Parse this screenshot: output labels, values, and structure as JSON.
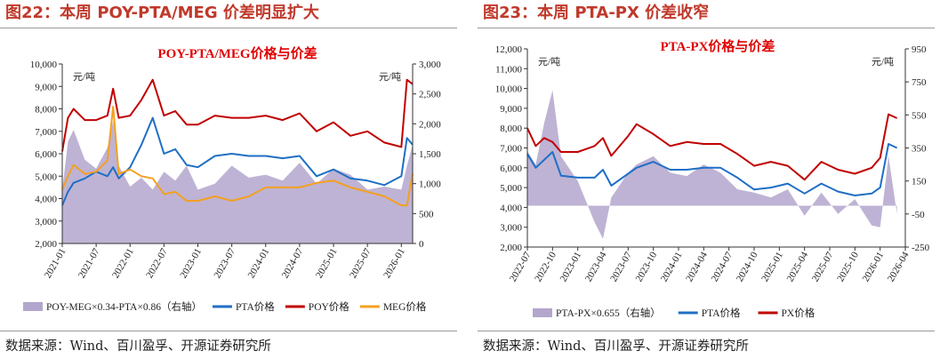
{
  "figures": [
    {
      "id": "fig22",
      "title": "图22：本周 POY-PTA/MEG 价差明显扩大",
      "source": "数据来源：Wind、百川盈孚、开源证券研究所",
      "chart_data": {
        "type": "line",
        "title": "POY-PTA/MEG价格与价差",
        "y_unit_left": "元/吨",
        "y_unit_right": "元/吨",
        "ylim_left": [
          2000,
          10000
        ],
        "ylim_right": [
          0,
          3000
        ],
        "yticks_left": [
          "2,000",
          "3,000",
          "4,000",
          "5,000",
          "6,000",
          "7,000",
          "8,000",
          "9,000",
          "10,000"
        ],
        "yticks_right": [
          "0",
          "500",
          "1,000",
          "1,500",
          "2,000",
          "2,500",
          "3,000"
        ],
        "x_ticks": [
          "2021-01",
          "2021-07",
          "2022-01",
          "2022-07",
          "2023-01",
          "2023-07",
          "2024-01",
          "2024-07",
          "2025-01",
          "2025-07",
          "2026-01"
        ],
        "x_range": [
          "2021-01",
          "2026-03"
        ],
        "grid": false,
        "legend_position": "bottom",
        "series": [
          {
            "name": "POY-MEG×0.34-PTA×0.86（右轴）",
            "kind": "area",
            "axis": "right",
            "color": "#b3a6cd",
            "x": [
              "2021-01",
              "2021-02",
              "2021-03",
              "2021-05",
              "2021-07",
              "2021-09",
              "2021-10",
              "2021-11",
              "2022-01",
              "2022-03",
              "2022-05",
              "2022-07",
              "2022-09",
              "2022-11",
              "2023-01",
              "2023-04",
              "2023-07",
              "2023-10",
              "2024-01",
              "2024-04",
              "2024-07",
              "2024-10",
              "2025-01",
              "2025-04",
              "2025-07",
              "2025-10",
              "2026-01",
              "2026-02",
              "2026-03"
            ],
            "values": [
              900,
              1700,
              1900,
              1400,
              1250,
              1600,
              2050,
              1300,
              950,
              1100,
              900,
              1200,
              1050,
              1300,
              900,
              1000,
              1300,
              1100,
              1150,
              1050,
              1350,
              1000,
              1250,
              1150,
              900,
              950,
              900,
              1300,
              1650
            ]
          },
          {
            "name": "PTA价格",
            "kind": "line",
            "axis": "left",
            "color": "#1f6fc5",
            "x": [
              "2021-01",
              "2021-02",
              "2021-03",
              "2021-05",
              "2021-07",
              "2021-09",
              "2021-10",
              "2021-11",
              "2022-01",
              "2022-03",
              "2022-05",
              "2022-07",
              "2022-09",
              "2022-11",
              "2023-01",
              "2023-04",
              "2023-07",
              "2023-10",
              "2024-01",
              "2024-04",
              "2024-07",
              "2024-10",
              "2025-01",
              "2025-04",
              "2025-07",
              "2025-10",
              "2026-01",
              "2026-02",
              "2026-03"
            ],
            "values": [
              3700,
              4300,
              4700,
              4900,
              5200,
              5000,
              5400,
              4900,
              5400,
              6400,
              7600,
              6000,
              6200,
              5500,
              5400,
              5900,
              6000,
              5900,
              5900,
              5800,
              5900,
              5000,
              5300,
              4900,
              4800,
              4600,
              5000,
              6700,
              6400
            ]
          },
          {
            "name": "POY价格",
            "kind": "line",
            "axis": "left",
            "color": "#c00000",
            "x": [
              "2021-01",
              "2021-02",
              "2021-03",
              "2021-05",
              "2021-07",
              "2021-09",
              "2021-10",
              "2021-11",
              "2022-01",
              "2022-03",
              "2022-05",
              "2022-07",
              "2022-09",
              "2022-11",
              "2023-01",
              "2023-04",
              "2023-07",
              "2023-10",
              "2024-01",
              "2024-04",
              "2024-07",
              "2024-10",
              "2025-01",
              "2025-04",
              "2025-07",
              "2025-10",
              "2026-01",
              "2026-02",
              "2026-03"
            ],
            "values": [
              6100,
              7600,
              8000,
              7500,
              7500,
              7700,
              8900,
              7600,
              7700,
              8400,
              9300,
              7700,
              7900,
              7300,
              7300,
              7700,
              7600,
              7600,
              7700,
              7500,
              7800,
              7000,
              7400,
              6800,
              7000,
              6500,
              6300,
              9300,
              9100
            ]
          },
          {
            "name": "MEG价格",
            "kind": "line",
            "axis": "left",
            "color": "#f4a020",
            "x": [
              "2021-01",
              "2021-02",
              "2021-03",
              "2021-05",
              "2021-07",
              "2021-09",
              "2021-10",
              "2021-11",
              "2022-01",
              "2022-03",
              "2022-05",
              "2022-07",
              "2022-09",
              "2022-11",
              "2023-01",
              "2023-04",
              "2023-07",
              "2023-10",
              "2024-01",
              "2024-04",
              "2024-07",
              "2024-10",
              "2025-01",
              "2025-04",
              "2025-07",
              "2025-10",
              "2026-01",
              "2026-02",
              "2026-03"
            ],
            "values": [
              4400,
              5000,
              5500,
              5100,
              5200,
              5700,
              8100,
              5100,
              5300,
              5000,
              4900,
              4200,
              4300,
              3900,
              3900,
              4100,
              3900,
              4100,
              4500,
              4500,
              4500,
              4700,
              4800,
              4500,
              4300,
              4100,
              3700,
              3700,
              5100
            ]
          }
        ]
      }
    },
    {
      "id": "fig23",
      "title": "图23：本周 PTA-PX 价差收窄",
      "source": "数据来源：Wind、百川盈孚、开源证券研究所",
      "chart_data": {
        "type": "line",
        "title": "PTA-PX价格与价差",
        "y_unit_left": "元/吨",
        "y_unit_right": "元/吨",
        "ylim_left": [
          2000,
          12000
        ],
        "ylim_right": [
          -250,
          950
        ],
        "yticks_left": [
          "2,000",
          "3,000",
          "4,000",
          "5,000",
          "6,000",
          "7,000",
          "8,000",
          "9,000",
          "10,000",
          "11,000",
          "12,000"
        ],
        "yticks_right": [
          "-250",
          "-50",
          "150",
          "350",
          "550",
          "750",
          "950"
        ],
        "x_ticks": [
          "2022-07",
          "2022-10",
          "2023-01",
          "2023-04",
          "2023-07",
          "2023-10",
          "2024-01",
          "2024-04",
          "2024-07",
          "2024-10",
          "2025-01",
          "2025-04",
          "2025-07",
          "2025-10",
          "2026-01",
          "2026-04"
        ],
        "x_range": [
          "2022-07",
          "2026-04"
        ],
        "grid": false,
        "legend_position": "bottom",
        "series": [
          {
            "name": "PTA-PX×0.655（右轴）",
            "kind": "area",
            "axis": "right",
            "baseline": 0,
            "color": "#b3a6cd",
            "x": [
              "2022-07",
              "2022-08",
              "2022-09",
              "2022-10",
              "2022-11",
              "2023-01",
              "2023-03",
              "2023-04",
              "2023-05",
              "2023-07",
              "2023-08",
              "2023-10",
              "2023-12",
              "2024-02",
              "2024-04",
              "2024-06",
              "2024-08",
              "2024-10",
              "2024-12",
              "2025-02",
              "2025-04",
              "2025-06",
              "2025-08",
              "2025-10",
              "2025-12",
              "2026-01",
              "2026-02",
              "2026-03"
            ],
            "values": [
              330,
              250,
              500,
              700,
              300,
              150,
              -100,
              -200,
              50,
              200,
              250,
              300,
              200,
              180,
              250,
              200,
              100,
              80,
              50,
              100,
              -60,
              80,
              -50,
              40,
              -120,
              -130,
              300,
              -50
            ]
          },
          {
            "name": "PTA价格",
            "kind": "line",
            "axis": "left",
            "color": "#1f6fc5",
            "x": [
              "2022-07",
              "2022-08",
              "2022-09",
              "2022-10",
              "2022-11",
              "2023-01",
              "2023-03",
              "2023-04",
              "2023-05",
              "2023-07",
              "2023-08",
              "2023-10",
              "2023-12",
              "2024-02",
              "2024-04",
              "2024-06",
              "2024-08",
              "2024-10",
              "2024-12",
              "2025-02",
              "2025-04",
              "2025-06",
              "2025-08",
              "2025-10",
              "2025-12",
              "2026-01",
              "2026-02",
              "2026-03"
            ],
            "values": [
              6700,
              6000,
              6400,
              6800,
              5600,
              5500,
              5500,
              5900,
              5100,
              5700,
              6000,
              6300,
              5900,
              5900,
              6000,
              6000,
              5500,
              4900,
              5000,
              5200,
              4700,
              5200,
              4800,
              4600,
              4700,
              5000,
              7200,
              7000
            ]
          },
          {
            "name": "PX价格",
            "kind": "line",
            "axis": "left",
            "color": "#c00000",
            "x": [
              "2022-07",
              "2022-08",
              "2022-09",
              "2022-10",
              "2022-11",
              "2023-01",
              "2023-03",
              "2023-04",
              "2023-05",
              "2023-07",
              "2023-08",
              "2023-10",
              "2023-12",
              "2024-02",
              "2024-04",
              "2024-06",
              "2024-08",
              "2024-10",
              "2024-12",
              "2025-02",
              "2025-04",
              "2025-06",
              "2025-08",
              "2025-10",
              "2025-12",
              "2026-01",
              "2026-02",
              "2026-03"
            ],
            "values": [
              8000,
              7100,
              7500,
              7300,
              6800,
              6800,
              7100,
              7500,
              6600,
              7600,
              8200,
              7700,
              7100,
              7300,
              7200,
              7200,
              6700,
              6100,
              6300,
              6100,
              5400,
              6300,
              5900,
              5700,
              6000,
              6500,
              8700,
              8500
            ]
          }
        ]
      }
    }
  ]
}
